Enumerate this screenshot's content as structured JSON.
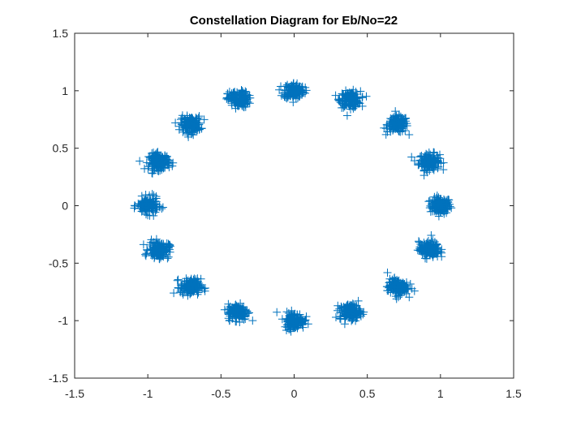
{
  "chart_data": {
    "type": "scatter",
    "title": "Constellation Diagram for Eb/No=22",
    "xlabel": "",
    "ylabel": "",
    "xlim": [
      -1.5,
      1.5
    ],
    "ylim": [
      -1.5,
      1.5
    ],
    "xticks": [
      -1.5,
      -1,
      -0.5,
      0,
      0.5,
      1,
      1.5
    ],
    "yticks": [
      -1.5,
      -1,
      -0.5,
      0,
      0.5,
      1,
      1.5
    ],
    "xtick_labels": [
      "-1.5",
      "-1",
      "-0.5",
      "0",
      "0.5",
      "1",
      "1.5"
    ],
    "ytick_labels": [
      "-1.5",
      "-1",
      "-0.5",
      "0",
      "0.5",
      "1",
      "1.5"
    ],
    "grid": false,
    "marker": "+",
    "marker_color": "#0072BD",
    "cluster_spread": 0.035,
    "points_per_cluster": 150,
    "cluster_centers": [
      {
        "x": 1.0,
        "y": 0.0
      },
      {
        "x": 0.924,
        "y": 0.383
      },
      {
        "x": 0.707,
        "y": 0.707
      },
      {
        "x": 0.383,
        "y": 0.924
      },
      {
        "x": 0.0,
        "y": 1.0
      },
      {
        "x": -0.383,
        "y": 0.924
      },
      {
        "x": -0.707,
        "y": 0.707
      },
      {
        "x": -0.924,
        "y": 0.383
      },
      {
        "x": -1.0,
        "y": 0.0
      },
      {
        "x": -0.924,
        "y": -0.383
      },
      {
        "x": -0.707,
        "y": -0.707
      },
      {
        "x": -0.383,
        "y": -0.924
      },
      {
        "x": 0.0,
        "y": -1.0
      },
      {
        "x": 0.383,
        "y": -0.924
      },
      {
        "x": 0.707,
        "y": -0.707
      },
      {
        "x": 0.924,
        "y": -0.383
      }
    ]
  }
}
